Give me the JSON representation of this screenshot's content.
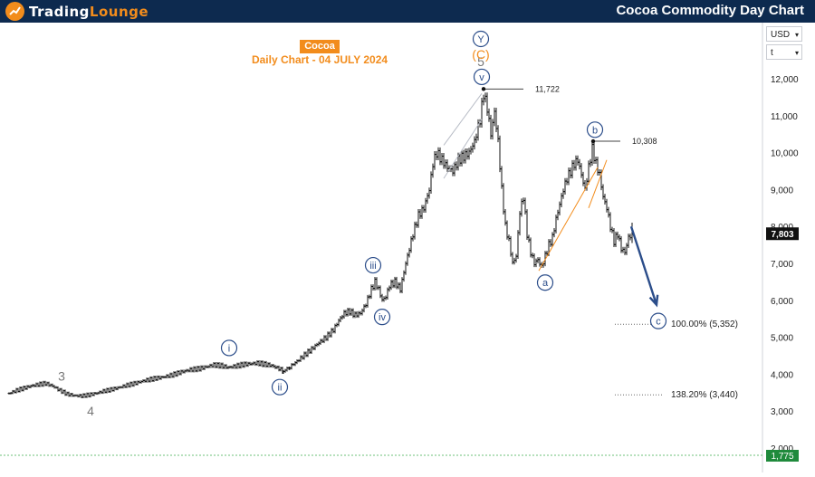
{
  "header": {
    "logo_prefix": "Trading",
    "logo_suffix": "Lounge",
    "title": "Cocoa Commodity Day Chart"
  },
  "chart_title": "Cocoa",
  "chart_subtitle": "Daily Chart - 04 JULY 2024",
  "axis_controls": {
    "currency": "USD",
    "scale": "t"
  },
  "colors": {
    "header_bg": "#0d2a4f",
    "accent_orange": "#f28c1c",
    "wave_blue": "#2b4d8a",
    "wave_gray": "#777777",
    "price_label_bg": "#111111",
    "bottom_label_bg": "#1f8a3c",
    "arrow_color": "#2b4d8a"
  },
  "chart_data": {
    "type": "bar",
    "title": "Cocoa",
    "subtitle": "Daily Chart - 04 JULY 2024",
    "y_axis": {
      "scale": "linear",
      "range": [
        1700,
        12500
      ],
      "ticks": [
        "12,000",
        "11,000",
        "10,000",
        "9,000",
        "8,000",
        "7,000",
        "6,000",
        "5,000",
        "4,000",
        "3,000",
        "2,000"
      ],
      "position": "right"
    },
    "grid": false,
    "last_price": {
      "value": 7803,
      "label": "7,803"
    },
    "bottom_price": {
      "value": 1775,
      "label": "1,775"
    },
    "price_path": [
      [
        0,
        3480
      ],
      [
        8,
        3560
      ],
      [
        16,
        3620
      ],
      [
        24,
        3680
      ],
      [
        32,
        3720
      ],
      [
        40,
        3750
      ],
      [
        48,
        3680
      ],
      [
        56,
        3560
      ],
      [
        64,
        3460
      ],
      [
        72,
        3420
      ],
      [
        80,
        3410
      ],
      [
        88,
        3440
      ],
      [
        96,
        3480
      ],
      [
        104,
        3540
      ],
      [
        112,
        3580
      ],
      [
        120,
        3630
      ],
      [
        130,
        3700
      ],
      [
        140,
        3760
      ],
      [
        150,
        3830
      ],
      [
        160,
        3880
      ],
      [
        170,
        3920
      ],
      [
        180,
        3980
      ],
      [
        190,
        4060
      ],
      [
        200,
        4120
      ],
      [
        210,
        4150
      ],
      [
        218,
        4200
      ],
      [
        226,
        4250
      ],
      [
        234,
        4230
      ],
      [
        242,
        4180
      ],
      [
        250,
        4220
      ],
      [
        258,
        4260
      ],
      [
        266,
        4280
      ],
      [
        274,
        4300
      ],
      [
        282,
        4270
      ],
      [
        290,
        4230
      ],
      [
        298,
        4150
      ],
      [
        303,
        4080
      ],
      [
        310,
        4200
      ],
      [
        318,
        4350
      ],
      [
        326,
        4520
      ],
      [
        334,
        4680
      ],
      [
        342,
        4850
      ],
      [
        350,
        5000
      ],
      [
        358,
        5200
      ],
      [
        364,
        5450
      ],
      [
        370,
        5650
      ],
      [
        376,
        5700
      ],
      [
        382,
        5600
      ],
      [
        388,
        5650
      ],
      [
        394,
        5900
      ],
      [
        400,
        6300
      ],
      [
        404,
        6500
      ],
      [
        408,
        6300
      ],
      [
        412,
        6000
      ],
      [
        416,
        6100
      ],
      [
        420,
        6400
      ],
      [
        426,
        6500
      ],
      [
        432,
        6300
      ],
      [
        438,
        7000
      ],
      [
        446,
        7800
      ],
      [
        452,
        8300
      ],
      [
        458,
        8500
      ],
      [
        464,
        9000
      ],
      [
        468,
        9700
      ],
      [
        472,
        10000
      ],
      [
        478,
        9800
      ],
      [
        484,
        9600
      ],
      [
        490,
        9500
      ],
      [
        496,
        9800
      ],
      [
        502,
        9900
      ],
      [
        508,
        10000
      ],
      [
        514,
        10300
      ],
      [
        520,
        10900
      ],
      [
        524,
        11600
      ],
      [
        528,
        11200
      ],
      [
        532,
        10500
      ],
      [
        536,
        11100
      ],
      [
        540,
        10300
      ],
      [
        544,
        9000
      ],
      [
        548,
        8000
      ],
      [
        552,
        7600
      ],
      [
        556,
        7000
      ],
      [
        560,
        7200
      ],
      [
        564,
        8400
      ],
      [
        568,
        8800
      ],
      [
        572,
        7800
      ],
      [
        576,
        7300
      ],
      [
        580,
        7000
      ],
      [
        584,
        7100
      ],
      [
        588,
        6900
      ],
      [
        592,
        7200
      ],
      [
        596,
        7500
      ],
      [
        600,
        7700
      ],
      [
        604,
        8200
      ],
      [
        608,
        8600
      ],
      [
        612,
        9000
      ],
      [
        616,
        9300
      ],
      [
        620,
        9500
      ],
      [
        624,
        9700
      ],
      [
        628,
        9800
      ],
      [
        632,
        9400
      ],
      [
        636,
        9000
      ],
      [
        640,
        9600
      ],
      [
        644,
        10100
      ],
      [
        648,
        9700
      ],
      [
        652,
        9400
      ],
      [
        656,
        8800
      ],
      [
        660,
        8500
      ],
      [
        664,
        8000
      ],
      [
        668,
        7600
      ],
      [
        672,
        7800
      ],
      [
        676,
        7400
      ],
      [
        680,
        7300
      ],
      [
        684,
        7700
      ],
      [
        688,
        7803
      ]
    ],
    "horizontal_levels": [
      {
        "price": 11722,
        "label": "11,722"
      },
      {
        "price": 10308,
        "label": "10,308"
      }
    ],
    "fib_levels": [
      {
        "price": 5352,
        "label": "100.00% (5,352)"
      },
      {
        "price": 3440,
        "label": "138.20% (3,440)"
      }
    ],
    "wave_labels": [
      {
        "label": "3",
        "style": "plain-gray",
        "t": 58,
        "price": 3950
      },
      {
        "label": "4",
        "style": "plain-gray",
        "t": 90,
        "price": 3010
      },
      {
        "label": "i",
        "style": "circle",
        "t": 243,
        "price": 4710
      },
      {
        "label": "ii",
        "style": "circle",
        "t": 299,
        "price": 3650
      },
      {
        "label": "iii",
        "style": "circle",
        "t": 402,
        "price": 6950
      },
      {
        "label": "iv",
        "style": "circle",
        "t": 412,
        "price": 5550
      },
      {
        "label": "v",
        "style": "circle",
        "t": 522,
        "price": 12050
      },
      {
        "label": "5",
        "style": "plain-gray",
        "t": 521,
        "price": 12460
      },
      {
        "label": "a",
        "style": "circle",
        "t": 592,
        "price": 6480
      },
      {
        "label": "b",
        "style": "circle",
        "t": 647,
        "price": 10620
      },
      {
        "label": "c",
        "style": "circle",
        "t": 717,
        "price": 5440
      }
    ],
    "top_labels": [
      {
        "label": "Y",
        "style": "circle",
        "t": 521
      },
      {
        "label": "(C)",
        "style": "orange-paren",
        "t": 521
      }
    ],
    "projection_arrow": {
      "from": [
        687,
        8000
      ],
      "to": [
        715,
        5880
      ]
    }
  }
}
